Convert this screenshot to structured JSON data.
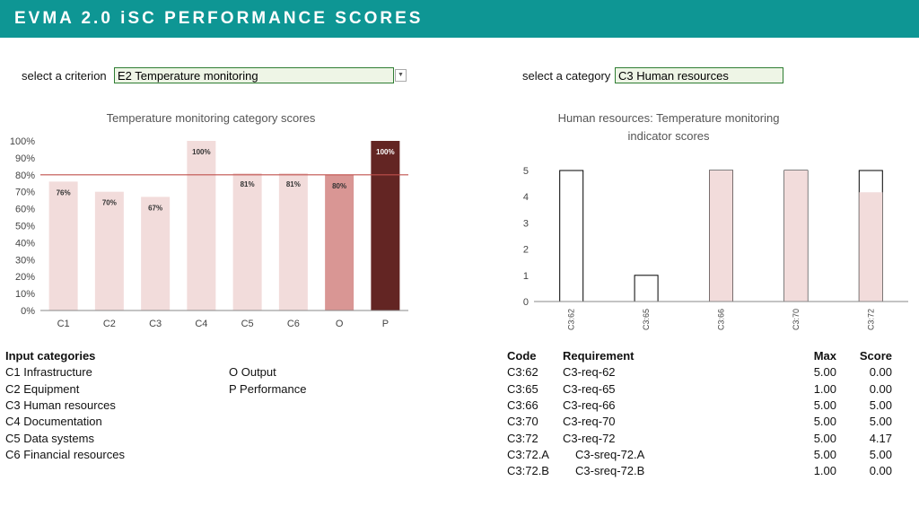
{
  "header": {
    "title": "EVMA 2.0 iSC PERFORMANCE SCORES"
  },
  "selectors": {
    "criterion": {
      "label": "select a criterion",
      "value": "E2 Temperature monitoring"
    },
    "category": {
      "label": "select a category",
      "value": "C3 Human resources"
    }
  },
  "chart_data": [
    {
      "type": "bar",
      "title": "Temperature monitoring category scores",
      "categories": [
        "C1",
        "C2",
        "C3",
        "C4",
        "C5",
        "C6",
        "O",
        "P"
      ],
      "values": [
        76,
        70,
        67,
        100,
        81,
        81,
        80,
        100
      ],
      "value_labels": [
        "76%",
        "70%",
        "67%",
        "100%",
        "81%",
        "81%",
        "80%",
        "100%"
      ],
      "colors": [
        "#f2dcdb",
        "#f2dcdb",
        "#f2dcdb",
        "#f2dcdb",
        "#f2dcdb",
        "#f2dcdb",
        "#d99694",
        "#632523"
      ],
      "ylim": [
        0,
        100
      ],
      "yticks": [
        {
          "value": 0,
          "label": "0%"
        },
        {
          "value": 10,
          "label": "10%"
        },
        {
          "value": 20,
          "label": "20%"
        },
        {
          "value": 30,
          "label": "30%"
        },
        {
          "value": 40,
          "label": "40%"
        },
        {
          "value": 50,
          "label": "50%"
        },
        {
          "value": 60,
          "label": "60%"
        },
        {
          "value": 70,
          "label": "70%"
        },
        {
          "value": 80,
          "label": "80%"
        },
        {
          "value": 90,
          "label": "90%"
        },
        {
          "value": 100,
          "label": "100%"
        }
      ],
      "reference_line": {
        "value": 80,
        "color": "#c0504d"
      },
      "grid": false
    },
    {
      "type": "overlay_bar",
      "title": "Human resources: Temperature monitoring indicator scores",
      "categories": [
        "C3:62",
        "C3:65",
        "C3:66",
        "C3:70",
        "C3:72"
      ],
      "series": [
        {
          "color": "#ffffff",
          "edgecolor": "#000000",
          "values": [
            5,
            1,
            5,
            5,
            5
          ]
        },
        {
          "color": "#f2dcdb",
          "values": [
            0,
            0,
            5,
            5,
            4.17
          ]
        }
      ],
      "ylim": [
        0,
        5
      ],
      "yticks": [
        0,
        1,
        2,
        3,
        4,
        5
      ],
      "grid": false
    }
  ],
  "input_categories": {
    "title": "Input categories",
    "left": [
      "C1 Infrastructure",
      "C2 Equipment",
      "C3 Human resources",
      "C4 Documentation",
      "C5 Data systems",
      "C6 Financial resources"
    ],
    "right": [
      "O Output",
      "P Performance"
    ]
  },
  "requirements": {
    "headers": [
      "Code",
      "Requirement",
      "Max",
      "Score"
    ],
    "rows": [
      [
        "C3:62",
        "C3-req-62",
        "5.00",
        "0.00"
      ],
      [
        "C3:65",
        "C3-req-65",
        "1.00",
        "0.00"
      ],
      [
        "C3:66",
        "C3-req-66",
        "5.00",
        "5.00"
      ],
      [
        "C3:70",
        "C3-req-70",
        "5.00",
        "5.00"
      ],
      [
        "C3:72",
        "C3-req-72",
        "5.00",
        "4.17"
      ],
      [
        "C3:72.A",
        "C3-sreq-72.A",
        "5.00",
        "5.00"
      ],
      [
        "C3:72.B",
        "C3-sreq-72.B",
        "1.00",
        "0.00"
      ]
    ]
  }
}
